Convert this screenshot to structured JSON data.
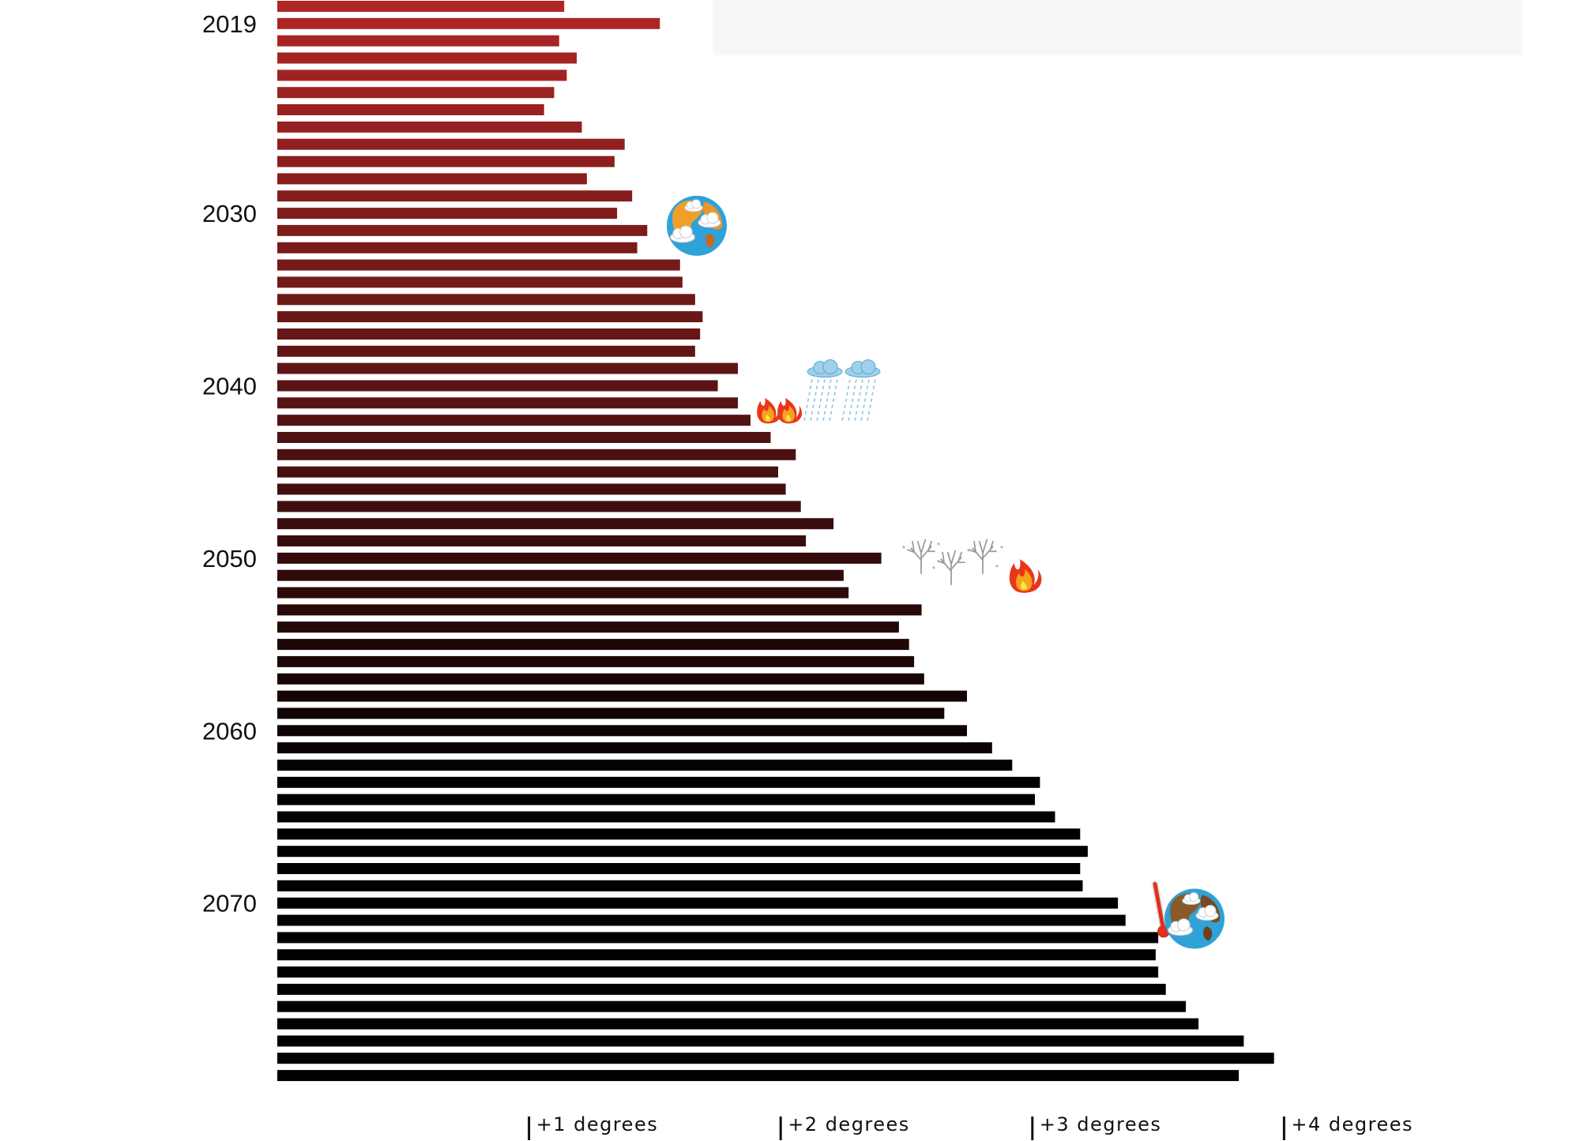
{
  "chart_data": {
    "type": "bar",
    "orientation": "horizontal",
    "title": "",
    "xlabel": "",
    "ylabel": "",
    "first_year": 2018,
    "year_labels": [
      "2019",
      "2030",
      "2040",
      "2050",
      "2060",
      "2070"
    ],
    "values": [
      1.14,
      1.52,
      1.12,
      1.19,
      1.15,
      1.1,
      1.06,
      1.21,
      1.38,
      1.34,
      1.23,
      1.41,
      1.35,
      1.47,
      1.43,
      1.6,
      1.61,
      1.66,
      1.69,
      1.68,
      1.66,
      1.83,
      1.75,
      1.83,
      1.88,
      1.96,
      2.06,
      1.99,
      2.02,
      2.08,
      2.21,
      2.1,
      2.4,
      2.25,
      2.27,
      2.56,
      2.47,
      2.51,
      2.53,
      2.57,
      2.74,
      2.65,
      2.74,
      2.84,
      2.92,
      3.03,
      3.01,
      3.09,
      3.19,
      3.22,
      3.19,
      3.2,
      3.34,
      3.37,
      3.5,
      3.49,
      3.5,
      3.53,
      3.61,
      3.66,
      3.84,
      3.96,
      3.82
    ],
    "x_ticks": [
      {
        "value": 1,
        "label": "+1 degrees"
      },
      {
        "value": 2,
        "label": "+2 degrees"
      },
      {
        "value": 3,
        "label": "+3 degrees"
      },
      {
        "value": 4,
        "label": "+4 degrees"
      }
    ],
    "color_start": "#b02626",
    "color_end": "#000000",
    "annotations": [
      {
        "year": 2030,
        "icon": "earth-icon"
      },
      {
        "year": 2041,
        "icon": "wildfire-icon"
      },
      {
        "year": 2040,
        "icon": "rain-cloud-icon"
      },
      {
        "year": 2050,
        "icon": "frozen-trees-icon"
      },
      {
        "year": 2050,
        "icon": "wildfire-icon"
      },
      {
        "year": 2071,
        "icon": "thermometer-icon"
      },
      {
        "year": 2071,
        "icon": "hot-earth-icon"
      }
    ]
  }
}
